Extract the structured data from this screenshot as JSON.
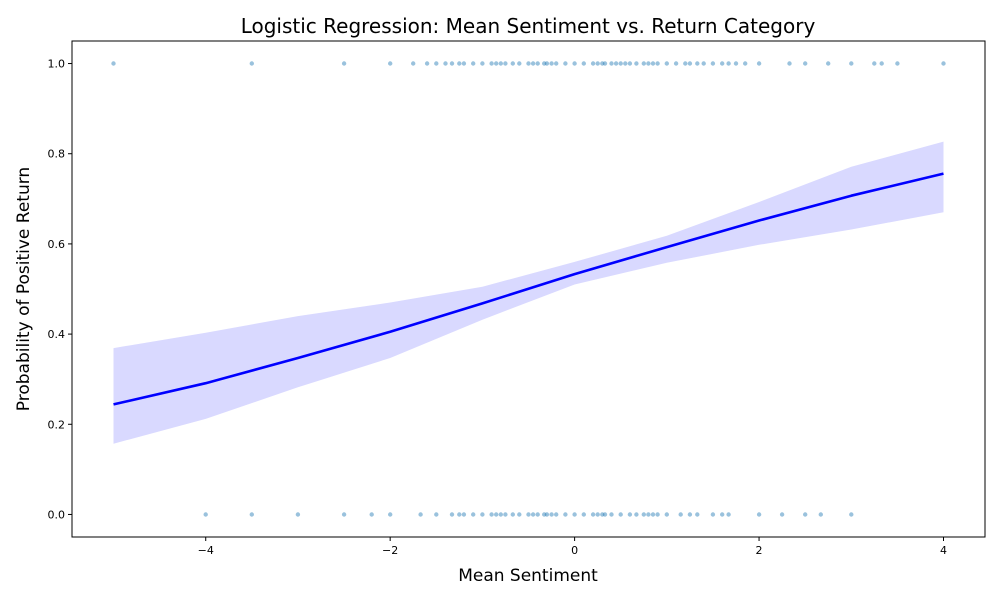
{
  "chart_data": {
    "type": "scatter",
    "title": "Logistic Regression: Mean Sentiment vs. Return Category",
    "xlabel": "Mean Sentiment",
    "ylabel": "Probability of Positive Return",
    "xlim": [
      -5.45,
      4.45
    ],
    "ylim": [
      -0.05,
      1.05
    ],
    "xticks": [
      -4,
      -2,
      0,
      2,
      4
    ],
    "xtick_labels": [
      "−4",
      "−2",
      "0",
      "2",
      "4"
    ],
    "yticks": [
      0.0,
      0.2,
      0.4,
      0.6,
      0.8,
      1.0
    ],
    "ytick_labels": [
      "0.0",
      "0.2",
      "0.4",
      "0.6",
      "0.8",
      "1.0"
    ],
    "grid": false,
    "colors": {
      "points": "#1f77b4",
      "line": "#0000ff",
      "band": "#d9d9ff"
    },
    "scatter": {
      "y1_x": [
        -5.0,
        -3.5,
        -2.5,
        -2.0,
        -1.75,
        -1.6,
        -1.5,
        -1.4,
        -1.33,
        -1.25,
        -1.2,
        -1.1,
        -1.0,
        -0.9,
        -0.85,
        -0.8,
        -0.75,
        -0.67,
        -0.6,
        -0.5,
        -0.45,
        -0.4,
        -0.33,
        -0.3,
        -0.25,
        -0.2,
        -0.1,
        0.0,
        0.1,
        0.2,
        0.25,
        0.3,
        0.33,
        0.4,
        0.45,
        0.5,
        0.55,
        0.6,
        0.67,
        0.75,
        0.8,
        0.85,
        0.9,
        1.0,
        1.1,
        1.2,
        1.25,
        1.33,
        1.4,
        1.5,
        1.6,
        1.67,
        1.75,
        1.85,
        2.0,
        2.33,
        2.5,
        2.75,
        3.0,
        3.25,
        3.33,
        3.5,
        4.0
      ],
      "y0_x": [
        -4.0,
        -3.5,
        -3.0,
        -2.5,
        -2.2,
        -2.0,
        -1.67,
        -1.5,
        -1.33,
        -1.25,
        -1.2,
        -1.1,
        -1.0,
        -0.9,
        -0.85,
        -0.8,
        -0.75,
        -0.67,
        -0.6,
        -0.5,
        -0.45,
        -0.4,
        -0.33,
        -0.3,
        -0.25,
        -0.2,
        -0.1,
        0.0,
        0.1,
        0.2,
        0.25,
        0.3,
        0.33,
        0.4,
        0.5,
        0.6,
        0.67,
        0.75,
        0.8,
        0.85,
        0.9,
        1.0,
        1.15,
        1.25,
        1.33,
        1.5,
        1.6,
        1.67,
        2.0,
        2.25,
        2.5,
        2.67,
        3.0
      ]
    },
    "fit": {
      "x": [
        -5,
        -4,
        -3,
        -2,
        -1,
        0,
        1,
        2,
        3,
        4
      ],
      "y": [
        0.244,
        0.291,
        0.347,
        0.405,
        0.468,
        0.533,
        0.593,
        0.652,
        0.707,
        0.756
      ],
      "ci_low": [
        0.157,
        0.212,
        0.282,
        0.347,
        0.432,
        0.51,
        0.558,
        0.598,
        0.632,
        0.67
      ],
      "ci_high": [
        0.369,
        0.403,
        0.44,
        0.47,
        0.505,
        0.56,
        0.618,
        0.693,
        0.771,
        0.827
      ]
    }
  }
}
